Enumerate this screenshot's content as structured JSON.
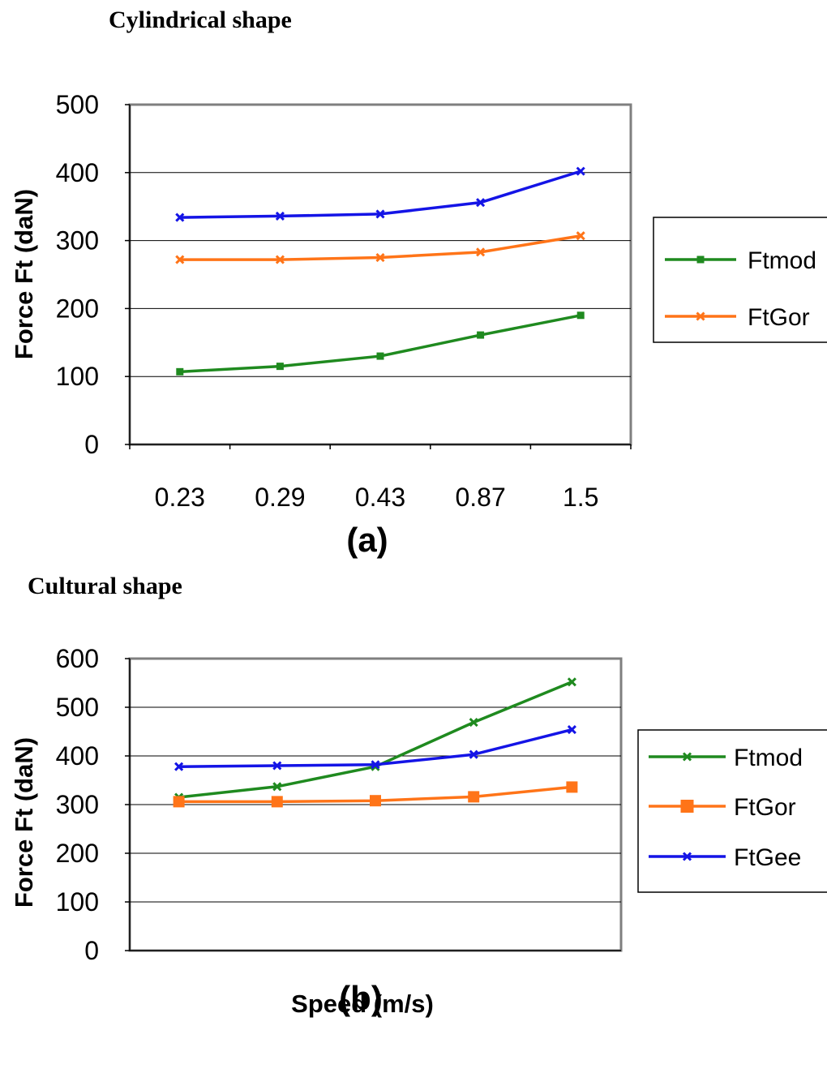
{
  "headings": {
    "a": "Cylindrical shape",
    "b": "Cultural shape"
  },
  "chart_data": [
    {
      "type": "line",
      "id": "a",
      "panel_label": "(a)",
      "ylabel": "Force Ft (daN)",
      "xlabel": "",
      "categories": [
        "0.23",
        "0.29",
        "0.43",
        "0.87",
        "1.5"
      ],
      "show_category_labels": true,
      "ylim": [
        0,
        500
      ],
      "yticks": [
        0,
        100,
        200,
        300,
        400,
        500
      ],
      "grid": true,
      "legend_position": "right",
      "series": [
        {
          "name": "Ftmod",
          "color": "#1f8a1f",
          "marker": "square",
          "values": [
            107,
            115,
            130,
            161,
            190
          ],
          "in_legend": true
        },
        {
          "name": "FtGor",
          "color": "#ff7418",
          "marker": "x",
          "values": [
            272,
            272,
            275,
            283,
            307
          ],
          "in_legend": true
        },
        {
          "name": "",
          "color": "#1414e6",
          "marker": "x",
          "values": [
            334,
            336,
            339,
            356,
            402
          ],
          "in_legend": false
        }
      ]
    },
    {
      "type": "line",
      "id": "b",
      "panel_label": "(b)",
      "ylabel": "Force Ft (daN)",
      "xlabel": "Speed (m/s)",
      "categories": [
        "",
        "",
        "",
        "",
        ""
      ],
      "show_category_labels": false,
      "ylim": [
        0,
        600
      ],
      "yticks": [
        0,
        100,
        200,
        300,
        400,
        500,
        600
      ],
      "grid": true,
      "legend_position": "right",
      "series": [
        {
          "name": "Ftmod",
          "color": "#1f8a1f",
          "marker": "x",
          "values": [
            315,
            337,
            378,
            469,
            552
          ],
          "in_legend": true
        },
        {
          "name": "FtGor",
          "color": "#ff7418",
          "marker": "square",
          "values": [
            306,
            306,
            308,
            316,
            336
          ],
          "in_legend": true
        },
        {
          "name": "FtGee",
          "color": "#1414e6",
          "marker": "x",
          "values": [
            378,
            380,
            382,
            403,
            454
          ],
          "in_legend": true
        }
      ]
    }
  ]
}
